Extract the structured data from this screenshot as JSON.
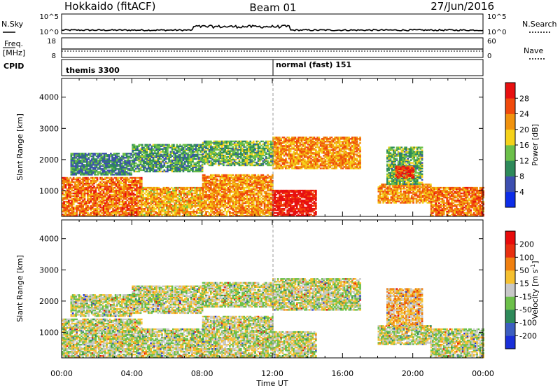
{
  "header": {
    "radar": "Hokkaido (fitACF)",
    "beam": "Beam 01",
    "date": "27/Jun/2016"
  },
  "status_panels": {
    "nsky": {
      "label": "N.Sky",
      "left_ticks": [
        "10^5",
        "10^0"
      ]
    },
    "nsearch": {
      "label": "N.Search",
      "right_ticks": [
        "10^5",
        "10^0"
      ]
    },
    "freq": {
      "label_line1": "Freq.",
      "label_line2": "[MHz]",
      "left_ticks": [
        "18",
        "8"
      ]
    },
    "nave": {
      "label": "Nave",
      "right_ticks": [
        "60",
        "0"
      ]
    },
    "cpid": {
      "label": "CPID",
      "segments": [
        {
          "start_hour": 0,
          "name": "themis 3300"
        },
        {
          "start_hour": 12,
          "name": "normal (fast) 151"
        }
      ]
    }
  },
  "x_axis": {
    "label": "Time UT",
    "ticks": [
      "00:00",
      "04:00",
      "08:00",
      "12:00",
      "16:00",
      "20:00",
      "00:00"
    ]
  },
  "chart_data": [
    {
      "type": "heatmap",
      "title": "Power",
      "xlabel": "Time UT",
      "ylabel": "Slant Range [km]",
      "xlim": [
        0,
        24
      ],
      "ylim": [
        180,
        4600
      ],
      "yticks": [
        1000,
        2000,
        3000,
        4000
      ],
      "colorbar": {
        "label": "Power [dB]",
        "range": [
          0,
          32
        ],
        "ticks": [
          "4",
          "8",
          "12",
          "16",
          "20",
          "24",
          "28"
        ],
        "colors": [
          "#0d2de8",
          "#3d4fb0",
          "#2e8a5a",
          "#6cc04a",
          "#f5d21a",
          "#f0920e",
          "#f04a0c",
          "#e81010"
        ]
      },
      "regions": [
        {
          "t": [
            0,
            4.5
          ],
          "r": [
            180,
            1400
          ],
          "level": 0.75
        },
        {
          "t": [
            4.5,
            8
          ],
          "r": [
            180,
            1100
          ],
          "level": 0.65
        },
        {
          "t": [
            8,
            12
          ],
          "r": [
            180,
            1500
          ],
          "level": 0.7
        },
        {
          "t": [
            12,
            14.5
          ],
          "r": [
            180,
            1000
          ],
          "level": 0.95
        },
        {
          "t": [
            12,
            17
          ],
          "r": [
            1700,
            2700
          ],
          "level": 0.7
        },
        {
          "t": [
            0.5,
            4
          ],
          "r": [
            1500,
            2200
          ],
          "level": 0.3
        },
        {
          "t": [
            4,
            8
          ],
          "r": [
            1600,
            2500
          ],
          "level": 0.35
        },
        {
          "t": [
            8,
            12
          ],
          "r": [
            1800,
            2600
          ],
          "level": 0.4
        },
        {
          "t": [
            18,
            21
          ],
          "r": [
            600,
            1200
          ],
          "level": 0.7
        },
        {
          "t": [
            18.5,
            20.5
          ],
          "r": [
            1200,
            2400
          ],
          "level": 0.4
        },
        {
          "t": [
            19,
            20
          ],
          "r": [
            1400,
            1800
          ],
          "level": 0.9
        },
        {
          "t": [
            21,
            24
          ],
          "r": [
            180,
            1100
          ],
          "level": 0.75
        }
      ]
    },
    {
      "type": "heatmap",
      "title": "Velocity",
      "xlabel": "Time UT",
      "ylabel": "Slant Range [km]",
      "xlim": [
        0,
        24
      ],
      "ylim": [
        180,
        4600
      ],
      "yticks": [
        1000,
        2000,
        3000,
        4000
      ],
      "colorbar": {
        "label": "Velocity [m s^-1]",
        "range": [
          -250,
          250
        ],
        "ticks": [
          "200",
          "100",
          "50",
          "15",
          "-15",
          "-50",
          "-100",
          "-200"
        ],
        "colors": [
          "#1a2fd8",
          "#3c5ec0",
          "#2e8a5a",
          "#6cc04a",
          "#c8c8c8",
          "#f5c030",
          "#f08010",
          "#e83010",
          "#e80c0c"
        ]
      },
      "regions": [
        {
          "t": [
            0,
            4.5
          ],
          "r": [
            180,
            1400
          ],
          "level": 0.5
        },
        {
          "t": [
            4.5,
            8
          ],
          "r": [
            180,
            1100
          ],
          "level": 0.5
        },
        {
          "t": [
            8,
            12
          ],
          "r": [
            180,
            1500
          ],
          "level": 0.5
        },
        {
          "t": [
            12,
            14.5
          ],
          "r": [
            180,
            1000
          ],
          "level": 0.5
        },
        {
          "t": [
            12,
            17
          ],
          "r": [
            1700,
            2700
          ],
          "level": 0.5
        },
        {
          "t": [
            0.5,
            4
          ],
          "r": [
            1500,
            2200
          ],
          "level": 0.5
        },
        {
          "t": [
            4,
            8
          ],
          "r": [
            1600,
            2500
          ],
          "level": 0.5
        },
        {
          "t": [
            8,
            12
          ],
          "r": [
            1800,
            2600
          ],
          "level": 0.5
        },
        {
          "t": [
            18,
            21
          ],
          "r": [
            600,
            1200
          ],
          "level": 0.5
        },
        {
          "t": [
            18.5,
            20.5
          ],
          "r": [
            1200,
            2400
          ],
          "level": 0.62
        },
        {
          "t": [
            21,
            24
          ],
          "r": [
            180,
            1100
          ],
          "level": 0.5
        }
      ]
    }
  ]
}
